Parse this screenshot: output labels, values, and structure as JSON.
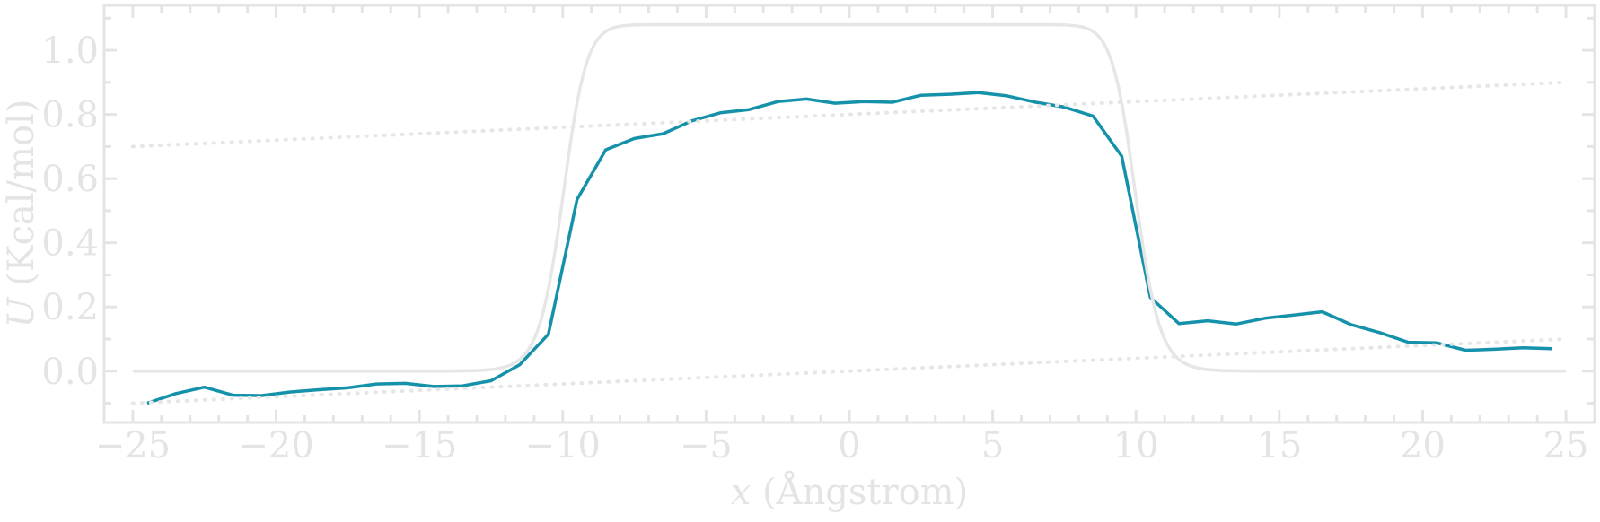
{
  "chart_data": {
    "type": "line",
    "title": "",
    "xlabel": "x (Ångstrom)",
    "xlabel_var": "x",
    "xlabel_unit": "(Ångstrom)",
    "ylabel": "U (Kcal/mol)",
    "ylabel_var": "U",
    "ylabel_unit": "(Kcal/mol)",
    "xlim": [
      -26,
      26
    ],
    "ylim": [
      -0.16,
      1.14
    ],
    "xticks": [
      -25,
      -20,
      -15,
      -10,
      -5,
      0,
      5,
      10,
      15,
      20,
      25
    ],
    "xtick_labels": [
      "−25",
      "−20",
      "−15",
      "−10",
      "−5",
      "0",
      "5",
      "10",
      "15",
      "20",
      "25"
    ],
    "yticks": [
      0.0,
      0.2,
      0.4,
      0.6,
      0.8,
      1.0
    ],
    "ytick_labels": [
      "0.0",
      "0.2",
      "0.4",
      "0.6",
      "0.8",
      "1.0"
    ],
    "grid": false,
    "legend": "none",
    "series": [
      {
        "style": "solid",
        "color": "#1592aa",
        "x": [
          -24.5,
          -23.5,
          -22.5,
          -21.5,
          -20.5,
          -19.5,
          -18.5,
          -17.5,
          -16.5,
          -15.5,
          -14.5,
          -13.5,
          -12.5,
          -11.5,
          -10.5,
          -9.5,
          -8.5,
          -7.5,
          -6.5,
          -5.5,
          -4.5,
          -3.5,
          -2.5,
          -1.5,
          -0.5,
          0.5,
          1.5,
          2.5,
          3.5,
          4.5,
          5.5,
          6.5,
          7.5,
          8.5,
          9.5,
          10.5,
          11.5,
          12.5,
          13.5,
          14.5,
          15.5,
          16.5,
          17.5,
          18.5,
          19.5,
          20.5,
          21.5,
          22.5,
          23.5,
          24.5
        ],
        "y": [
          -0.1,
          -0.07,
          -0.05,
          -0.075,
          -0.076,
          -0.065,
          -0.058,
          -0.052,
          -0.04,
          -0.038,
          -0.048,
          -0.046,
          -0.03,
          0.02,
          0.115,
          0.535,
          0.69,
          0.725,
          0.74,
          0.78,
          0.805,
          0.815,
          0.84,
          0.848,
          0.835,
          0.84,
          0.838,
          0.86,
          0.863,
          0.868,
          0.858,
          0.838,
          0.823,
          0.795,
          0.67,
          0.23,
          0.148,
          0.157,
          0.147,
          0.165,
          0.175,
          0.185,
          0.145,
          0.12,
          0.09,
          0.088,
          0.065,
          0.068,
          0.073,
          0.07
        ]
      },
      {
        "style": "solid",
        "color": "#e6e6e6",
        "function": "smooth-step barrier, height 1.08, edges at ±10",
        "x_range": [
          -25,
          25
        ]
      },
      {
        "style": "dotted",
        "color": "#e6e6e6",
        "x": [
          -25,
          25
        ],
        "y": [
          0.7,
          0.9
        ]
      },
      {
        "style": "dotted",
        "color": "#e6e6e6",
        "x": [
          -25,
          25
        ],
        "y": [
          -0.1,
          0.1
        ]
      }
    ]
  }
}
